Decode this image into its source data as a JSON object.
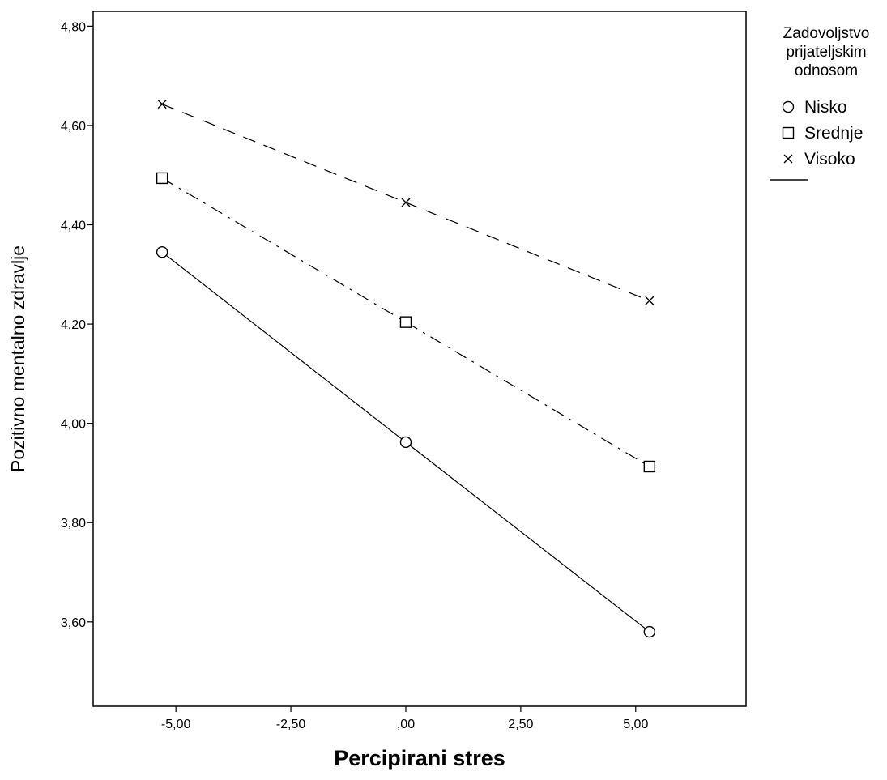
{
  "chart_data": {
    "type": "line",
    "xlabel": "Percipirani stres",
    "ylabel": "Pozitivno mentalno zdravlje",
    "xlim": [
      -6.8,
      7.4
    ],
    "ylim": [
      3.43,
      4.83
    ],
    "xticks": [
      -5,
      -2.5,
      0,
      2.5,
      5
    ],
    "xtick_labels": [
      "-5,00",
      "-2,50",
      ",00",
      "2,50",
      "5,00"
    ],
    "yticks": [
      3.6,
      3.8,
      4.0,
      4.2,
      4.4,
      4.6,
      4.8
    ],
    "ytick_labels": [
      "3,60",
      "3,80",
      "4,00",
      "4,20",
      "4,40",
      "4,60",
      "4,80"
    ],
    "grid": false,
    "legend_position": "right",
    "legend_title": "Zadovoljstvo prijateljskim odnosom",
    "x": [
      -5.3,
      0,
      5.3
    ],
    "series": [
      {
        "name": "Nisko",
        "marker": "circle",
        "line": "solid",
        "values": [
          4.345,
          3.962,
          3.58
        ]
      },
      {
        "name": "Srednje",
        "marker": "square",
        "line": "dash-dot",
        "values": [
          4.494,
          4.204,
          3.913
        ]
      },
      {
        "name": "Visoko",
        "marker": "x",
        "line": "dashed",
        "values": [
          4.643,
          4.445,
          4.247
        ]
      }
    ]
  }
}
